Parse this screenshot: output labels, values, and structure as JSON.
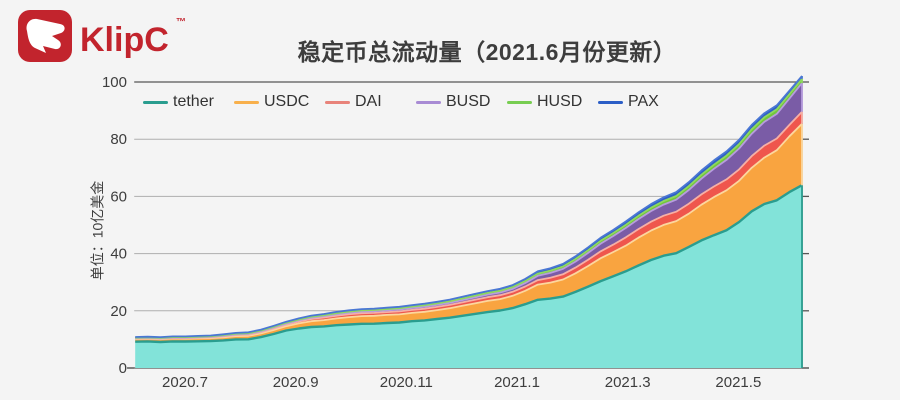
{
  "brand": {
    "name": "KlipC",
    "tm": "™"
  },
  "title": "稳定币总流动量（2021.6月份更新）",
  "colors": {
    "background": "#f4f4f4",
    "text": "#3d3d3d",
    "grid": "#aeaeae",
    "axis": "#565656",
    "brand_red": "#c2242d"
  },
  "y_axis": {
    "label": "单位：10亿美金",
    "ticks": [
      0,
      20,
      40,
      60,
      80,
      100
    ],
    "min": 0,
    "max": 100
  },
  "x_axis": {
    "ticks": [
      {
        "month": 7,
        "label": "2020.7"
      },
      {
        "month": 9,
        "label": "2020.9"
      },
      {
        "month": 11,
        "label": "2020.11"
      },
      {
        "month": 13,
        "label": "2021.1"
      },
      {
        "month": 15,
        "label": "2021.3"
      },
      {
        "month": 17,
        "label": "2021.5"
      }
    ]
  },
  "chart_data": {
    "type": "area",
    "stacked": true,
    "title": "稳定币总流动量（2021.6月份更新）",
    "ylabel": "单位：10亿美金",
    "ylim": [
      0,
      100
    ],
    "x_unit": "calendar month index (2020.6=6.1 … 2021.6=18.15), weekly samples",
    "x_start": 6.1,
    "x_end": 18.15,
    "points": 54,
    "legend_position": "top-left",
    "grid": true,
    "series": [
      {
        "name": "tether",
        "legend_color": "#2a9d8f",
        "fill": "#82e3d9",
        "line": "#2a9d8f",
        "values": [
          9.2,
          9.3,
          9.1,
          9.3,
          9.25,
          9.35,
          9.4,
          9.65,
          10.0,
          10.05,
          10.8,
          11.9,
          13.1,
          13.8,
          14.35,
          14.55,
          14.95,
          15.2,
          15.45,
          15.5,
          15.75,
          15.9,
          16.35,
          16.65,
          17.15,
          17.6,
          18.25,
          18.9,
          19.55,
          20.1,
          20.95,
          22.3,
          23.85,
          24.25,
          24.95,
          26.6,
          28.45,
          30.4,
          32.05,
          33.8,
          35.85,
          37.75,
          39.25,
          40.15,
          42.35,
          44.6,
          46.45,
          48.15,
          51.05,
          54.8,
          57.35,
          58.65,
          61.5,
          63.9
        ]
      },
      {
        "name": "USDC",
        "legend_color": "#f8b04c",
        "fill": "#f9a440",
        "line": "#fcd79e",
        "values": [
          0.95,
          0.96,
          0.97,
          1.0,
          1.0,
          1.02,
          1.05,
          1.1,
          1.15,
          1.2,
          1.3,
          1.4,
          1.5,
          1.8,
          2.0,
          2.2,
          2.4,
          2.6,
          2.7,
          2.75,
          2.8,
          2.85,
          2.9,
          3.0,
          3.1,
          3.3,
          3.5,
          3.7,
          3.9,
          4.0,
          4.3,
          4.7,
          5.3,
          5.6,
          6.0,
          6.5,
          7.2,
          8.0,
          8.5,
          9.0,
          9.7,
          10.3,
          10.8,
          11.2,
          11.6,
          12.5,
          13.3,
          14.0,
          14.4,
          15.2,
          16.2,
          17.5,
          19.5,
          21.5
        ]
      },
      {
        "name": "DAI",
        "legend_color": "#e8837a",
        "fill": "#ef564d",
        "line": "#f6b0a6",
        "values": [
          0.13,
          0.14,
          0.15,
          0.16,
          0.18,
          0.2,
          0.25,
          0.3,
          0.35,
          0.4,
          0.45,
          0.5,
          0.55,
          0.65,
          0.8,
          0.9,
          0.95,
          1.0,
          1.0,
          1.0,
          1.0,
          1.05,
          1.05,
          1.1,
          1.1,
          1.15,
          1.2,
          1.25,
          1.3,
          1.35,
          1.4,
          1.5,
          1.6,
          1.7,
          1.8,
          2.0,
          2.2,
          2.4,
          2.6,
          2.9,
          3.0,
          3.1,
          3.2,
          3.3,
          3.5,
          3.6,
          3.7,
          3.8,
          4.0,
          4.1,
          4.2,
          4.1,
          4.0,
          4.2
        ]
      },
      {
        "name": "BUSD",
        "legend_color": "#a88bd4",
        "fill": "#7a5ca6",
        "line": "#b79dde",
        "values": [
          0.15,
          0.16,
          0.17,
          0.18,
          0.2,
          0.21,
          0.23,
          0.25,
          0.28,
          0.3,
          0.33,
          0.36,
          0.4,
          0.42,
          0.45,
          0.48,
          0.5,
          0.55,
          0.58,
          0.6,
          0.62,
          0.65,
          0.68,
          0.7,
          0.72,
          0.75,
          0.8,
          0.85,
          0.9,
          0.95,
          1.0,
          1.2,
          1.5,
          1.7,
          1.9,
          2.1,
          2.4,
          2.7,
          3.0,
          3.3,
          3.5,
          3.7,
          3.9,
          4.2,
          4.8,
          5.5,
          6.2,
          6.8,
          7.3,
          7.8,
          8.3,
          8.6,
          9.2,
          10.0
        ]
      },
      {
        "name": "HUSD",
        "legend_color": "#77cd51",
        "fill": "#72c73b",
        "line": "#8ed95f",
        "values": [
          0.15,
          0.15,
          0.15,
          0.16,
          0.17,
          0.17,
          0.18,
          0.19,
          0.2,
          0.22,
          0.24,
          0.26,
          0.28,
          0.3,
          0.32,
          0.34,
          0.36,
          0.38,
          0.4,
          0.42,
          0.44,
          0.46,
          0.48,
          0.5,
          0.52,
          0.54,
          0.56,
          0.58,
          0.6,
          0.62,
          0.65,
          0.7,
          0.75,
          0.8,
          0.85,
          0.9,
          0.95,
          1.0,
          1.05,
          1.1,
          1.15,
          1.2,
          1.25,
          1.3,
          1.35,
          1.4,
          1.45,
          1.5,
          1.55,
          1.6,
          1.6,
          1.6,
          1.55,
          1.5
        ]
      },
      {
        "name": "PAX",
        "legend_color": "#2b5ec6",
        "fill": "#2e5fc6",
        "line": "#4a77d4",
        "values": [
          0.25,
          0.25,
          0.25,
          0.25,
          0.25,
          0.26,
          0.27,
          0.28,
          0.3,
          0.3,
          0.32,
          0.34,
          0.36,
          0.38,
          0.4,
          0.42,
          0.44,
          0.45,
          0.46,
          0.47,
          0.48,
          0.5,
          0.5,
          0.52,
          0.54,
          0.56,
          0.6,
          0.62,
          0.65,
          0.68,
          0.7,
          0.75,
          0.8,
          0.85,
          0.9,
          0.95,
          1.0,
          1.05,
          1.1,
          1.15,
          1.2,
          1.25,
          1.3,
          1.35,
          1.4,
          1.45,
          1.5,
          1.5,
          1.5,
          1.5,
          1.45,
          1.4,
          1.2,
          1.0
        ]
      }
    ]
  }
}
